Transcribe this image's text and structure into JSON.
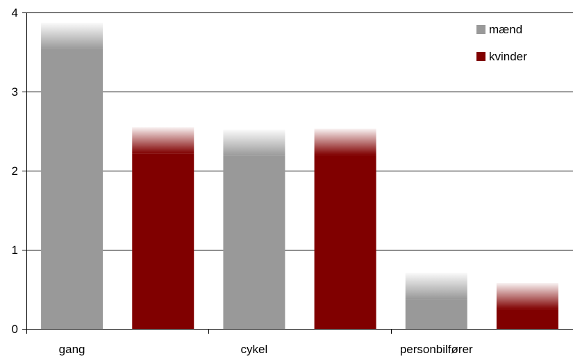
{
  "chart_data": {
    "type": "bar",
    "categories": [
      "gang",
      "cykel",
      "personbilfører"
    ],
    "series": [
      {
        "name": "mænd",
        "color": "#999999",
        "values": [
          3.87,
          2.52,
          0.71
        ]
      },
      {
        "name": "kvinder",
        "color": "#800000",
        "values": [
          2.55,
          2.53,
          0.58
        ]
      }
    ],
    "ylim": [
      0,
      4
    ],
    "yticks": [
      "0",
      "1",
      "2",
      "3",
      "4"
    ],
    "grid": true,
    "legend": "top-right"
  }
}
